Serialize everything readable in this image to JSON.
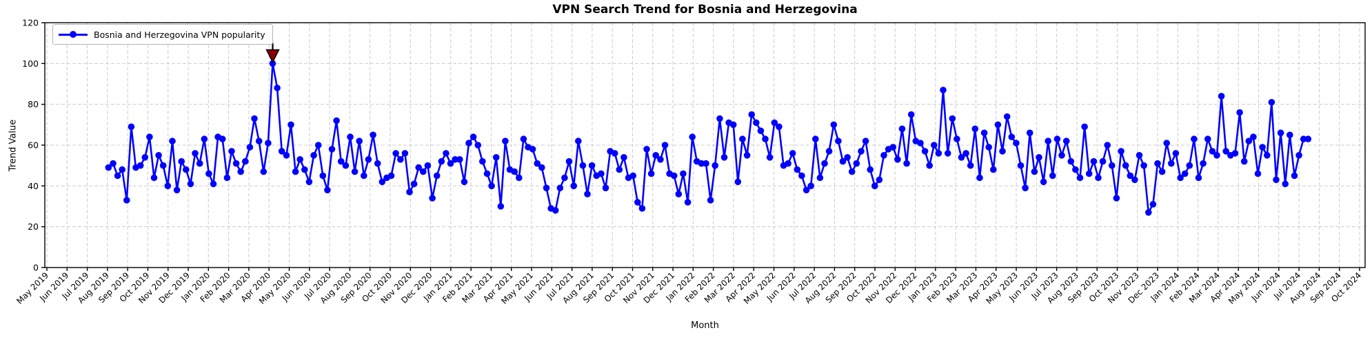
{
  "title": "VPN Search Trend for Bosnia and Herzegovina",
  "colors": {
    "line": "#0000ff",
    "marker": "#0000ff",
    "annotation_fill": "#8b0000",
    "annotation_edge": "#000000",
    "grid": "#cccccc",
    "axis": "#000000",
    "background": "#ffffff"
  },
  "chart_data": {
    "type": "line",
    "title": "VPN Search Trend for Bosnia and Herzegovina",
    "xlabel": "Month",
    "ylabel": "Trend Value",
    "ylim": [
      0,
      120
    ],
    "yticks": [
      0,
      20,
      40,
      60,
      80,
      100,
      120
    ],
    "grid": true,
    "legend_position": "upper left",
    "series_name": "Bosnia and Herzegovina VPN popularity",
    "frequency": "weekly",
    "start": "Aug 2019",
    "end": "Aug 2024",
    "x_tick_labels": [
      "May 2019",
      "Jun 2019",
      "Jul 2019",
      "Aug 2019",
      "Sep 2019",
      "Oct 2019",
      "Nov 2019",
      "Dec 2019",
      "Jan 2020",
      "Feb 2020",
      "Mar 2020",
      "Apr 2020",
      "May 2020",
      "Jun 2020",
      "Jul 2020",
      "Aug 2020",
      "Sep 2020",
      "Oct 2020",
      "Nov 2020",
      "Dec 2020",
      "Jan 2021",
      "Feb 2021",
      "Mar 2021",
      "Apr 2021",
      "May 2021",
      "Jun 2021",
      "Jul 2021",
      "Aug 2021",
      "Sep 2021",
      "Oct 2021",
      "Nov 2021",
      "Dec 2021",
      "Jan 2022",
      "Feb 2022",
      "Mar 2022",
      "Apr 2022",
      "May 2022",
      "Jun 2022",
      "Jul 2022",
      "Aug 2022",
      "Sep 2022",
      "Oct 2022",
      "Nov 2022",
      "Dec 2022",
      "Jan 2023",
      "Feb 2023",
      "Mar 2023",
      "Apr 2023",
      "May 2023",
      "Jun 2023",
      "Jul 2023",
      "Aug 2023",
      "Sep 2023",
      "Oct 2023",
      "Nov 2023",
      "Dec 2023",
      "Jan 2024",
      "Feb 2024",
      "Mar 2024",
      "Apr 2024",
      "May 2024",
      "Jun 2024",
      "Jul 2024",
      "Aug 2024",
      "Sep 2024",
      "Oct 2024"
    ],
    "values": [
      49,
      51,
      45,
      48,
      33,
      69,
      49,
      50,
      54,
      64,
      44,
      55,
      50,
      40,
      62,
      38,
      52,
      48,
      41,
      56,
      51,
      63,
      46,
      41,
      64,
      63,
      44,
      57,
      51,
      47,
      52,
      59,
      73,
      62,
      47,
      61,
      100,
      88,
      57,
      55,
      70,
      47,
      53,
      48,
      42,
      55,
      60,
      45,
      38,
      58,
      72,
      52,
      50,
      64,
      47,
      62,
      45,
      53,
      65,
      51,
      42,
      44,
      45,
      56,
      53,
      56,
      37,
      41,
      49,
      47,
      50,
      34,
      45,
      52,
      56,
      51,
      53,
      53,
      42,
      61,
      64,
      60,
      52,
      46,
      40,
      54,
      30,
      62,
      48,
      47,
      44,
      63,
      59,
      58,
      51,
      49,
      39,
      29,
      28,
      39,
      44,
      52,
      40,
      62,
      50,
      36,
      50,
      45,
      46,
      39,
      57,
      56,
      48,
      54,
      44,
      45,
      32,
      29,
      58,
      46,
      55,
      53,
      60,
      46,
      45,
      36,
      46,
      32,
      64,
      52,
      51,
      51,
      33,
      50,
      73,
      54,
      71,
      70,
      42,
      63,
      55,
      75,
      71,
      67,
      63,
      54,
      71,
      69,
      50,
      51,
      56,
      48,
      45,
      38,
      40,
      63,
      44,
      51,
      57,
      70,
      62,
      52,
      54,
      47,
      51,
      57,
      62,
      48,
      40,
      43,
      55,
      58,
      59,
      53,
      68,
      51,
      75,
      62,
      61,
      57,
      50,
      60,
      56,
      87,
      56,
      73,
      63,
      54,
      56,
      50,
      68,
      44,
      66,
      59,
      48,
      70,
      57,
      74,
      64,
      61,
      50,
      39,
      66,
      47,
      54,
      42,
      62,
      45,
      63,
      55,
      62,
      52,
      48,
      44,
      69,
      46,
      52,
      44,
      52,
      60,
      50,
      34,
      57,
      50,
      45,
      43,
      55,
      50,
      27,
      31,
      51,
      47,
      61,
      51,
      56,
      44,
      46,
      50,
      63,
      44,
      51,
      63,
      57,
      55,
      84,
      57,
      55,
      56,
      76,
      52,
      62,
      64,
      46,
      59,
      55,
      81,
      43,
      66,
      41,
      65,
      45,
      55,
      63,
      63
    ],
    "annotation": {
      "type": "arrow-triangle-down",
      "target": "max",
      "value": 100,
      "at": "Apr 2020"
    }
  }
}
